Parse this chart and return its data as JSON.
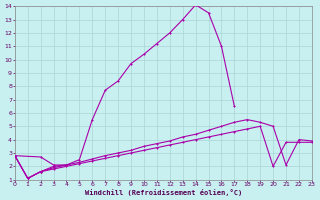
{
  "xlabel": "Windchill (Refroidissement éolien,°C)",
  "xlim": [
    0,
    23
  ],
  "ylim": [
    1,
    14
  ],
  "xticks": [
    0,
    1,
    2,
    3,
    4,
    5,
    6,
    7,
    8,
    9,
    10,
    11,
    12,
    13,
    14,
    15,
    16,
    17,
    18,
    19,
    20,
    21,
    22,
    23
  ],
  "yticks": [
    1,
    2,
    3,
    4,
    5,
    6,
    7,
    8,
    9,
    10,
    11,
    12,
    13,
    14
  ],
  "bg_color": "#c8f0f0",
  "grid_color": "#aad4d4",
  "line_color": "#aa00aa",
  "line1_x": [
    0,
    1,
    2,
    3,
    4,
    5,
    6,
    7,
    8,
    9,
    10,
    11,
    12,
    13,
    14,
    15,
    16,
    17
  ],
  "line1_y": [
    2.8,
    1.1,
    1.6,
    2.0,
    2.1,
    2.5,
    5.5,
    7.7,
    8.4,
    9.7,
    10.4,
    11.2,
    12.0,
    13.0,
    14.1,
    13.5,
    11.0,
    6.5
  ],
  "line2_x": [
    0,
    2,
    3,
    4
  ],
  "line2_y": [
    2.8,
    2.7,
    2.1,
    2.1
  ],
  "line3_x": [
    0,
    1,
    2,
    3,
    4,
    5,
    6,
    7,
    8,
    9,
    10,
    11,
    12,
    13,
    14,
    15,
    16,
    17,
    18,
    19,
    20,
    21,
    22,
    23
  ],
  "line3_y": [
    2.8,
    1.1,
    1.6,
    1.8,
    2.0,
    2.2,
    2.4,
    2.6,
    2.8,
    3.0,
    3.2,
    3.4,
    3.6,
    3.8,
    4.0,
    4.2,
    4.4,
    4.6,
    4.8,
    5.0,
    2.0,
    3.8,
    3.8,
    3.8
  ],
  "line4_x": [
    0,
    1,
    2,
    3,
    4,
    5,
    6,
    7,
    8,
    9,
    10,
    11,
    12,
    13,
    14,
    15,
    16,
    17,
    18,
    19,
    20,
    21,
    22,
    23
  ],
  "line4_y": [
    2.8,
    1.1,
    1.6,
    1.9,
    2.1,
    2.3,
    2.55,
    2.8,
    3.0,
    3.2,
    3.5,
    3.7,
    3.9,
    4.2,
    4.4,
    4.7,
    5.0,
    5.3,
    5.5,
    5.3,
    5.0,
    2.1,
    4.0,
    3.9
  ]
}
